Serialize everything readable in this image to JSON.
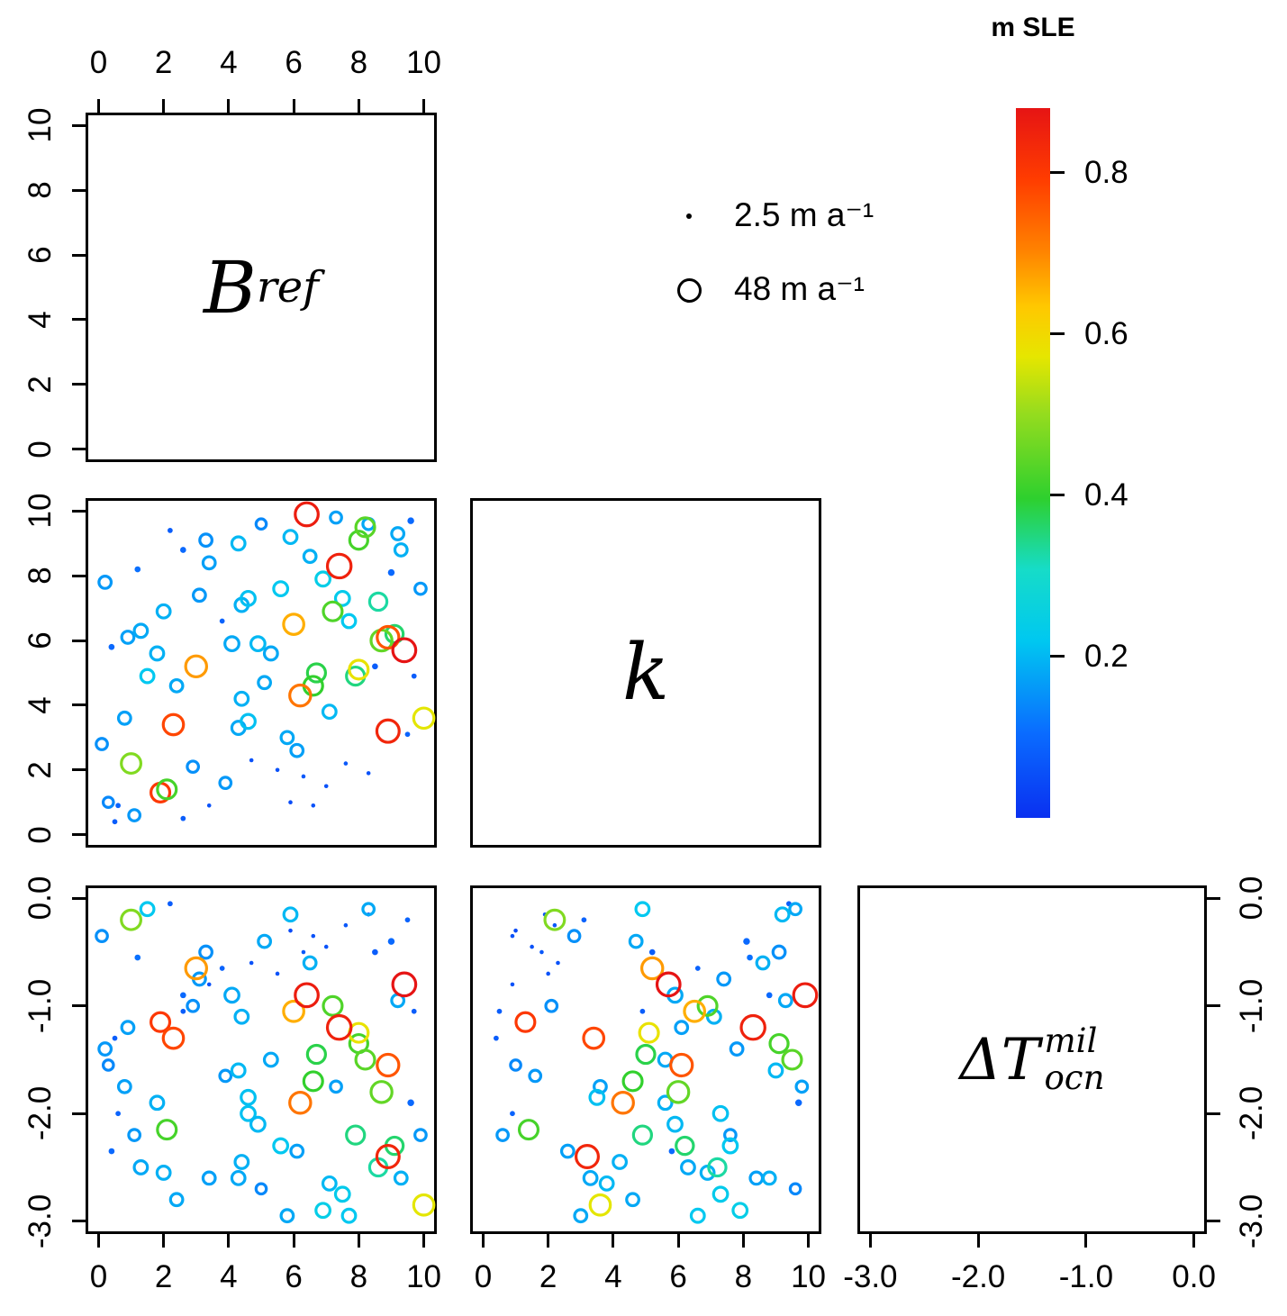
{
  "colorbar": {
    "title": "m SLE",
    "tick_values": [
      0.8,
      0.6,
      0.4,
      0.2
    ],
    "tick_labels": [
      "0.8",
      "0.6",
      "0.4",
      "0.2"
    ],
    "domain": [
      0,
      0.88
    ],
    "gradient_stops": [
      {
        "t": 0.0,
        "c": "#0a30f0"
      },
      {
        "t": 0.12,
        "c": "#0a6cff"
      },
      {
        "t": 0.25,
        "c": "#00c8f0"
      },
      {
        "t": 0.35,
        "c": "#16dcc8"
      },
      {
        "t": 0.45,
        "c": "#2ed02e"
      },
      {
        "t": 0.57,
        "c": "#96dc1e"
      },
      {
        "t": 0.65,
        "c": "#e6e600"
      },
      {
        "t": 0.72,
        "c": "#ffc800"
      },
      {
        "t": 0.8,
        "c": "#ff8200"
      },
      {
        "t": 0.9,
        "c": "#ff3c00"
      },
      {
        "t": 1.0,
        "c": "#e61414"
      }
    ]
  },
  "legend": {
    "items": [
      {
        "symbol": "small-dot",
        "label": "2.5 m a⁻¹",
        "value": 2.5
      },
      {
        "symbol": "open-circle",
        "label": "48 m a⁻¹",
        "value": 48
      }
    ]
  },
  "chart_data": {
    "type": "scatter-matrix",
    "variables": [
      {
        "id": "B_ref",
        "label_base": "B",
        "label_sub": "ref",
        "range": [
          0,
          10
        ],
        "tick_values": [
          0,
          2,
          4,
          6,
          8,
          10
        ],
        "tick_labels": [
          "0",
          "2",
          "4",
          "6",
          "8",
          "10"
        ]
      },
      {
        "id": "k",
        "label_base": "k",
        "range": [
          0,
          10
        ],
        "tick_values": [
          0,
          2,
          4,
          6,
          8,
          10
        ],
        "tick_labels": [
          "0",
          "2",
          "4",
          "6",
          "8",
          "10"
        ]
      },
      {
        "id": "dT_ocn_mil",
        "label_base": "ΔT",
        "label_sub": "ocn",
        "label_sup": "mil",
        "range": [
          -3,
          0
        ],
        "tick_values": [
          0,
          -1,
          -2,
          -3
        ],
        "tick_labels": [
          "0.0",
          "-1.0",
          "-2.0",
          "-3.0"
        ]
      }
    ],
    "panels": [
      {
        "row": 0,
        "col": 0,
        "type": "label",
        "var": "B_ref"
      },
      {
        "row": 1,
        "col": 0,
        "type": "scatter",
        "x": "B_ref",
        "y": "k"
      },
      {
        "row": 1,
        "col": 1,
        "type": "label",
        "var": "k"
      },
      {
        "row": 2,
        "col": 0,
        "type": "scatter",
        "x": "B_ref",
        "y": "dT_ocn_mil"
      },
      {
        "row": 2,
        "col": 1,
        "type": "scatter",
        "x": "k",
        "y": "dT_ocn_mil"
      },
      {
        "row": 2,
        "col": 2,
        "type": "label",
        "var": "dT_ocn_mil"
      }
    ],
    "axes": [
      {
        "side": "top",
        "row": 0,
        "col": 0,
        "var": "B_ref"
      },
      {
        "side": "left",
        "row": 0,
        "col": 0,
        "var": "B_ref"
      },
      {
        "side": "left",
        "row": 1,
        "col": 0,
        "var": "k"
      },
      {
        "side": "left",
        "row": 2,
        "col": 0,
        "var": "dT_ocn_mil"
      },
      {
        "side": "bottom",
        "row": 2,
        "col": 0,
        "var": "B_ref"
      },
      {
        "side": "bottom",
        "row": 2,
        "col": 1,
        "var": "k"
      },
      {
        "side": "bottom",
        "row": 2,
        "col": 2,
        "var": "dT_ocn_mil"
      },
      {
        "side": "right",
        "row": 2,
        "col": 2,
        "var": "dT_ocn_mil"
      }
    ],
    "size_scale": {
      "units": "m a⁻¹",
      "min": 2.5,
      "max": 48
    },
    "color_scale": {
      "units": "m SLE",
      "min": 0,
      "max": 0.88
    },
    "point_fields": [
      "B_ref",
      "k",
      "dT_ocn_mil",
      "velocity_m_per_a",
      "m_SLE"
    ],
    "points": [
      [
        6.4,
        9.9,
        -0.9,
        44,
        0.86
      ],
      [
        7.4,
        8.3,
        -1.2,
        46,
        0.85
      ],
      [
        9.4,
        5.7,
        -0.8,
        44,
        0.88
      ],
      [
        8.9,
        6.1,
        -1.55,
        40,
        0.76
      ],
      [
        8.9,
        3.2,
        -2.4,
        42,
        0.84
      ],
      [
        6.2,
        4.3,
        -1.9,
        38,
        0.72
      ],
      [
        6.0,
        6.5,
        -1.05,
        36,
        0.66
      ],
      [
        3.0,
        5.2,
        -0.65,
        38,
        0.68
      ],
      [
        2.3,
        3.4,
        -1.3,
        36,
        0.78
      ],
      [
        1.9,
        1.3,
        -1.15,
        32,
        0.8
      ],
      [
        2.1,
        1.4,
        -2.15,
        32,
        0.42
      ],
      [
        1.0,
        2.2,
        -0.2,
        34,
        0.48
      ],
      [
        10.0,
        3.6,
        -2.85,
        36,
        0.57
      ],
      [
        8.0,
        5.1,
        -1.25,
        32,
        0.58
      ],
      [
        8.2,
        9.5,
        -1.5,
        32,
        0.44
      ],
      [
        8.0,
        9.1,
        -1.35,
        30,
        0.42
      ],
      [
        7.2,
        6.9,
        -1.0,
        32,
        0.43
      ],
      [
        6.6,
        4.6,
        -1.7,
        32,
        0.4
      ],
      [
        8.7,
        6.0,
        -1.8,
        38,
        0.45
      ],
      [
        7.9,
        4.9,
        -2.2,
        30,
        0.35
      ],
      [
        6.7,
        5.0,
        -1.45,
        30,
        0.38
      ],
      [
        9.1,
        6.2,
        -2.3,
        28,
        0.36
      ],
      [
        8.6,
        7.2,
        -2.5,
        28,
        0.33
      ],
      [
        0.2,
        7.8,
        -1.4,
        16,
        0.16
      ],
      [
        1.3,
        6.3,
        -2.5,
        18,
        0.18
      ],
      [
        0.9,
        6.1,
        -1.2,
        16,
        0.17
      ],
      [
        1.8,
        5.6,
        -1.9,
        18,
        0.19
      ],
      [
        1.5,
        4.9,
        -0.1,
        18,
        0.22
      ],
      [
        2.4,
        4.6,
        -2.8,
        16,
        0.18
      ],
      [
        3.3,
        9.1,
        -0.5,
        16,
        0.15
      ],
      [
        4.3,
        9.0,
        -1.6,
        18,
        0.2
      ],
      [
        3.4,
        8.4,
        -2.6,
        16,
        0.17
      ],
      [
        4.6,
        7.3,
        -2.0,
        20,
        0.21
      ],
      [
        4.4,
        7.1,
        -1.1,
        18,
        0.19
      ],
      [
        5.6,
        7.6,
        -2.3,
        20,
        0.22
      ],
      [
        5.9,
        9.2,
        -0.15,
        18,
        0.2
      ],
      [
        5.0,
        9.6,
        -2.7,
        12,
        0.14
      ],
      [
        4.1,
        5.9,
        -0.9,
        20,
        0.18
      ],
      [
        4.9,
        5.9,
        -2.1,
        20,
        0.2
      ],
      [
        5.3,
        5.6,
        -1.5,
        18,
        0.18
      ],
      [
        4.4,
        4.2,
        -2.45,
        18,
        0.19
      ],
      [
        4.6,
        3.5,
        -1.85,
        20,
        0.21
      ],
      [
        4.3,
        3.3,
        -2.6,
        18,
        0.18
      ],
      [
        2.9,
        2.1,
        -1.0,
        14,
        0.15
      ],
      [
        1.1,
        0.6,
        -2.2,
        14,
        0.16
      ],
      [
        0.3,
        1.0,
        -1.55,
        12,
        0.14
      ],
      [
        6.9,
        7.9,
        -2.9,
        20,
        0.24
      ],
      [
        7.5,
        7.3,
        -2.75,
        20,
        0.23
      ],
      [
        8.3,
        9.6,
        -0.1,
        14,
        0.18
      ],
      [
        9.6,
        9.7,
        -1.9,
        6,
        0.1
      ],
      [
        9.0,
        8.1,
        -0.4,
        6,
        0.1
      ],
      [
        8.5,
        5.2,
        -0.5,
        5,
        0.08
      ],
      [
        4.7,
        2.3,
        -0.6,
        3,
        0.06
      ],
      [
        5.5,
        2.0,
        -0.7,
        3,
        0.06
      ],
      [
        6.3,
        1.8,
        -0.5,
        3,
        0.07
      ],
      [
        7.0,
        1.5,
        -0.45,
        3,
        0.06
      ],
      [
        5.9,
        1.0,
        -0.3,
        3,
        0.05
      ],
      [
        6.6,
        0.9,
        -0.35,
        3,
        0.06
      ],
      [
        7.6,
        2.2,
        -0.25,
        3,
        0.07
      ],
      [
        8.3,
        1.9,
        -0.15,
        3,
        0.06
      ],
      [
        3.4,
        0.9,
        -0.8,
        3,
        0.06
      ],
      [
        2.6,
        0.5,
        -1.05,
        4,
        0.08
      ],
      [
        0.6,
        0.9,
        -2.0,
        4,
        0.09
      ],
      [
        0.5,
        0.4,
        -1.3,
        4,
        0.08
      ],
      [
        9.5,
        3.1,
        -0.2,
        4,
        0.09
      ],
      [
        2.2,
        9.4,
        -0.05,
        4,
        0.08
      ],
      [
        2.6,
        8.8,
        -0.9,
        5,
        0.1
      ],
      [
        1.2,
        8.2,
        -0.55,
        5,
        0.11
      ],
      [
        0.4,
        5.8,
        -2.35,
        5,
        0.1
      ],
      [
        3.8,
        6.6,
        -0.65,
        4,
        0.09
      ],
      [
        9.7,
        4.9,
        -1.05,
        4,
        0.08
      ],
      [
        0.8,
        3.6,
        -1.75,
        16,
        0.17
      ],
      [
        2.0,
        6.9,
        -2.55,
        18,
        0.19
      ],
      [
        3.1,
        7.4,
        -0.75,
        16,
        0.16
      ],
      [
        5.8,
        3.0,
        -2.95,
        16,
        0.18
      ],
      [
        7.1,
        3.8,
        -2.65,
        18,
        0.2
      ],
      [
        6.1,
        2.6,
        -2.35,
        16,
        0.17
      ],
      [
        7.7,
        6.6,
        -2.95,
        18,
        0.22
      ],
      [
        9.3,
        8.8,
        -2.6,
        16,
        0.19
      ],
      [
        9.9,
        7.6,
        -2.2,
        14,
        0.16
      ],
      [
        0.1,
        2.8,
        -0.35,
        14,
        0.15
      ],
      [
        3.9,
        1.6,
        -1.65,
        14,
        0.16
      ],
      [
        5.1,
        4.7,
        -0.4,
        16,
        0.18
      ],
      [
        6.5,
        8.6,
        -0.6,
        16,
        0.19
      ],
      [
        7.3,
        9.8,
        -1.75,
        14,
        0.17
      ],
      [
        9.2,
        9.3,
        -0.95,
        16,
        0.18
      ]
    ]
  }
}
